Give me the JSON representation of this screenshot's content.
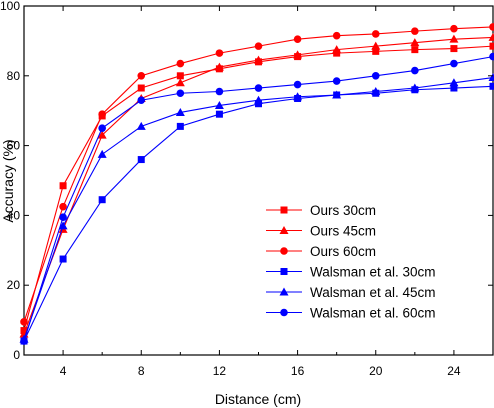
{
  "chart_data": {
    "type": "line",
    "xlabel": "Distance (cm)",
    "ylabel": "Accuracy (%)",
    "xlim": [
      2,
      26
    ],
    "ylim": [
      0,
      100
    ],
    "xticks": [
      4,
      8,
      12,
      16,
      20,
      24
    ],
    "yticks": [
      0,
      20,
      40,
      60,
      80,
      100
    ],
    "grid": false,
    "legend_position": "bottom-right",
    "x": [
      2,
      4,
      6,
      8,
      10,
      12,
      14,
      16,
      18,
      20,
      22,
      24,
      26
    ],
    "series": [
      {
        "name": "Ours 30cm",
        "color": "#ff0000",
        "marker": "square",
        "values": [
          7,
          48.5,
          68.5,
          76.5,
          80,
          82,
          84,
          85.5,
          86.5,
          87,
          87.5,
          87.8,
          88.5
        ]
      },
      {
        "name": "Ours 45cm",
        "color": "#ff0000",
        "marker": "triangle",
        "values": [
          6,
          36,
          63,
          73.5,
          78,
          82.5,
          84.5,
          86,
          87.5,
          88.5,
          89.5,
          90.5,
          91
        ]
      },
      {
        "name": "Ours 60cm",
        "color": "#ff0000",
        "marker": "circle",
        "values": [
          9.5,
          42.5,
          69,
          80,
          83.5,
          86.5,
          88.5,
          90.5,
          91.5,
          92,
          92.8,
          93.5,
          94
        ]
      },
      {
        "name": "Walsman et al. 30cm",
        "color": "#0000ff",
        "marker": "square",
        "values": [
          4,
          27.5,
          44.5,
          56,
          65.5,
          69,
          72,
          73.5,
          74.5,
          75,
          76,
          76.5,
          77
        ]
      },
      {
        "name": "Walsman et al. 45cm",
        "color": "#0000ff",
        "marker": "triangle",
        "values": [
          4.5,
          37,
          57.5,
          65.5,
          69.5,
          71.5,
          73,
          74,
          74.5,
          75.5,
          76.5,
          78,
          79.5
        ]
      },
      {
        "name": "Walsman et al. 60cm",
        "color": "#0000ff",
        "marker": "circle",
        "values": [
          4,
          39.5,
          65,
          73,
          75,
          75.5,
          76.5,
          77.5,
          78.5,
          80,
          81.5,
          83.5,
          85.5
        ]
      }
    ]
  }
}
